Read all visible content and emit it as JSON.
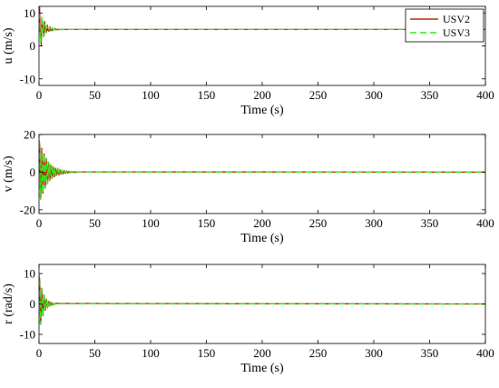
{
  "colors": {
    "usv2": "#b5260f",
    "usv3": "#33e81a",
    "axis": "#000000",
    "background": "#ffffff"
  },
  "chart_data": [
    {
      "type": "line",
      "ylabel": "u (m/s)",
      "xlabel": "Time (s)",
      "xlim": [
        0,
        400
      ],
      "ylim": [
        -12,
        12
      ],
      "xticks": [
        "0",
        "50",
        "100",
        "150",
        "200",
        "250",
        "300",
        "350",
        "400"
      ],
      "yticks": [
        "-10",
        "0",
        "10"
      ],
      "ytick_values": [
        -10,
        0,
        10
      ],
      "grid": false,
      "legend": {
        "placement": "top-right",
        "entries": [
          "USV2",
          "USV3"
        ]
      },
      "steady_value": 5,
      "series": [
        {
          "name": "USV2",
          "style": "solid",
          "x": [
            0,
            1,
            2,
            3,
            4,
            5,
            6,
            8,
            10,
            12,
            15,
            20,
            30,
            400
          ],
          "y": [
            0,
            11,
            -10,
            9,
            -6,
            8,
            2,
            7,
            4,
            6,
            4.8,
            5.2,
            5,
            5
          ]
        },
        {
          "name": "USV3",
          "style": "dashed",
          "x": [
            0,
            1,
            2,
            3,
            4,
            5,
            6,
            8,
            10,
            12,
            15,
            20,
            30,
            400
          ],
          "y": [
            0,
            9,
            -7,
            10,
            -5,
            7,
            3,
            6.5,
            4.2,
            5.8,
            4.9,
            5.1,
            5,
            5
          ]
        }
      ]
    },
    {
      "type": "line",
      "ylabel": "v (m/s)",
      "xlabel": "Time (s)",
      "xlim": [
        0,
        400
      ],
      "ylim": [
        -22,
        20
      ],
      "xticks": [
        "0",
        "50",
        "100",
        "150",
        "200",
        "250",
        "300",
        "350",
        "400"
      ],
      "yticks": [
        "-20",
        "0",
        "20"
      ],
      "ytick_values": [
        -20,
        0,
        20
      ],
      "grid": false,
      "decay": {
        "amplitude": 19,
        "time_constant": 7,
        "settle_time": 35
      },
      "series": [
        {
          "name": "USV2",
          "style": "solid"
        },
        {
          "name": "USV3",
          "style": "dashed"
        }
      ]
    },
    {
      "type": "line",
      "ylabel": "r (rad/s)",
      "xlabel": "Time (s)",
      "xlim": [
        0,
        400
      ],
      "ylim": [
        -13,
        13
      ],
      "xticks": [
        "0",
        "50",
        "100",
        "150",
        "200",
        "250",
        "300",
        "350",
        "400"
      ],
      "yticks": [
        "-10",
        "0",
        "10"
      ],
      "ytick_values": [
        -10,
        0,
        10
      ],
      "grid": false,
      "decay": {
        "amplitude": 11,
        "time_constant": 3.5,
        "settle_time": 15
      },
      "series": [
        {
          "name": "USV2",
          "style": "solid"
        },
        {
          "name": "USV3",
          "style": "dashed"
        }
      ]
    }
  ]
}
